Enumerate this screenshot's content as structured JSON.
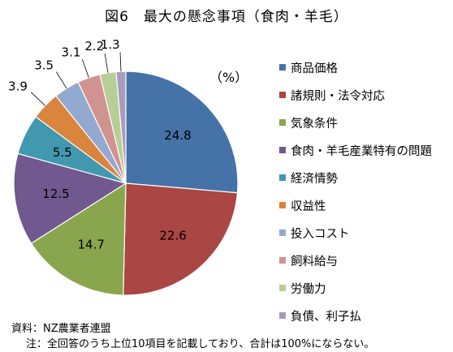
{
  "chart_data": {
    "type": "pie",
    "title": "図6　最大の懸念事項（食肉・羊毛）",
    "unit": "（%）",
    "start_angle_deg": 0,
    "direction": "clockwise",
    "slices": [
      {
        "label": "商品価格",
        "value": 24.8,
        "color": "#4572A7"
      },
      {
        "label": "諸規則・法令対応",
        "value": 22.6,
        "color": "#AA4643"
      },
      {
        "label": "気象条件",
        "value": 14.7,
        "color": "#89A54E"
      },
      {
        "label": "食肉・羊毛産業特有の問題",
        "value": 12.5,
        "color": "#71588F"
      },
      {
        "label": "経済情勢",
        "value": 5.5,
        "color": "#4198AF"
      },
      {
        "label": "収益性",
        "value": 3.9,
        "color": "#DB843D"
      },
      {
        "label": "投入コスト",
        "value": 3.5,
        "color": "#93A9CF"
      },
      {
        "label": "飼料給与",
        "value": 3.1,
        "color": "#D19392"
      },
      {
        "label": "労働力",
        "value": 2.2,
        "color": "#B9CD96"
      },
      {
        "label": "負債、利子払",
        "value": 1.3,
        "color": "#A99BBD"
      }
    ],
    "legend_position": "right"
  },
  "footer": {
    "source": "資料：NZ農業者連盟",
    "note": "注：全回答のうち上位10項目を記載しており、合計は100%にならない。"
  }
}
